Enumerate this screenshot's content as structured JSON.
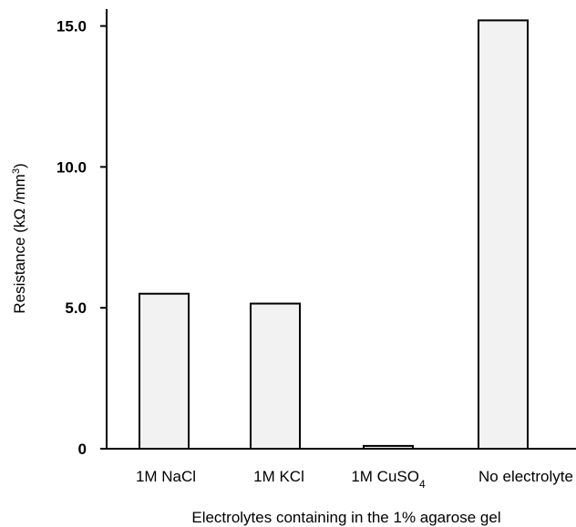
{
  "chart_data": {
    "type": "bar",
    "categories": [
      "1M NaCl",
      "1M KCl",
      "1M CuSO4",
      "No electrolyte"
    ],
    "category_labels": [
      {
        "main": "1M NaCl",
        "sub": "",
        "tail": ""
      },
      {
        "main": "1M KCl",
        "sub": "",
        "tail": ""
      },
      {
        "main": "1M CuSO",
        "sub": "4",
        "tail": ""
      },
      {
        "main": "No electrolyte",
        "sub": "",
        "tail": ""
      }
    ],
    "values": [
      5.5,
      5.15,
      0.1,
      15.2
    ],
    "xlabel": "Electrolytes containing in the 1% agarose gel",
    "ylabel": {
      "main": "Resistance (kΩ /mm",
      "sup": "3",
      "tail": ")"
    },
    "ylim": [
      0,
      15.6
    ],
    "yticks": [
      0,
      5,
      10,
      15
    ],
    "ytick_labels": [
      "0",
      "5.0",
      "10.0",
      "15.0"
    ],
    "grid": false,
    "legend": "none",
    "colors": {
      "bar_fill": "#f2f2f2",
      "bar_stroke": "#000000",
      "axis": "#000000"
    }
  }
}
